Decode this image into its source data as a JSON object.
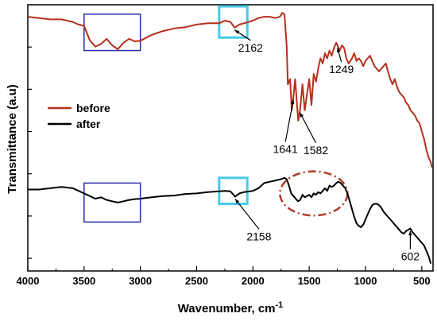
{
  "chart_data": {
    "type": "line",
    "title": "",
    "xlabel": "Wavenumber, cm",
    "xlabel_sup": "-1",
    "ylabel": "Transmittance (a.u)",
    "xlim": [
      4000,
      400
    ],
    "x_reversed": true,
    "ylim": [
      0,
      1
    ],
    "y_tick_labels_shown": false,
    "x_ticks": [
      4000,
      3500,
      3000,
      2500,
      2000,
      1500,
      1000,
      500
    ],
    "grid": false,
    "legend_position": "left",
    "series": [
      {
        "name": "before",
        "color": "#b5301c",
        "points": [
          [
            4000,
            0.96
          ],
          [
            3900,
            0.955
          ],
          [
            3800,
            0.95
          ],
          [
            3700,
            0.95
          ],
          [
            3600,
            0.94
          ],
          [
            3550,
            0.93
          ],
          [
            3500,
            0.925
          ],
          [
            3450,
            0.87
          ],
          [
            3400,
            0.845
          ],
          [
            3350,
            0.855
          ],
          [
            3300,
            0.875
          ],
          [
            3250,
            0.85
          ],
          [
            3200,
            0.835
          ],
          [
            3150,
            0.86
          ],
          [
            3100,
            0.875
          ],
          [
            3050,
            0.865
          ],
          [
            3000,
            0.868
          ],
          [
            2900,
            0.89
          ],
          [
            2800,
            0.905
          ],
          [
            2700,
            0.915
          ],
          [
            2600,
            0.92
          ],
          [
            2500,
            0.93
          ],
          [
            2400,
            0.935
          ],
          [
            2300,
            0.935
          ],
          [
            2250,
            0.945
          ],
          [
            2200,
            0.94
          ],
          [
            2162,
            0.918
          ],
          [
            2120,
            0.93
          ],
          [
            2080,
            0.935
          ],
          [
            2000,
            0.945
          ],
          [
            1950,
            0.955
          ],
          [
            1900,
            0.96
          ],
          [
            1850,
            0.96
          ],
          [
            1800,
            0.955
          ],
          [
            1760,
            0.96
          ],
          [
            1740,
            0.975
          ],
          [
            1720,
            0.97
          ],
          [
            1700,
            0.85
          ],
          [
            1690,
            0.7
          ],
          [
            1670,
            0.72
          ],
          [
            1655,
            0.6
          ],
          [
            1641,
            0.65
          ],
          [
            1625,
            0.72
          ],
          [
            1610,
            0.63
          ],
          [
            1597,
            0.56
          ],
          [
            1582,
            0.6
          ],
          [
            1560,
            0.7
          ],
          [
            1540,
            0.6
          ],
          [
            1520,
            0.66
          ],
          [
            1500,
            0.72
          ],
          [
            1480,
            0.62
          ],
          [
            1460,
            0.74
          ],
          [
            1440,
            0.71
          ],
          [
            1420,
            0.76
          ],
          [
            1400,
            0.8
          ],
          [
            1380,
            0.78
          ],
          [
            1360,
            0.82
          ],
          [
            1340,
            0.8
          ],
          [
            1320,
            0.83
          ],
          [
            1300,
            0.81
          ],
          [
            1280,
            0.84
          ],
          [
            1260,
            0.86
          ],
          [
            1249,
            0.85
          ],
          [
            1230,
            0.83
          ],
          [
            1210,
            0.85
          ],
          [
            1190,
            0.84
          ],
          [
            1170,
            0.8
          ],
          [
            1150,
            0.78
          ],
          [
            1120,
            0.8
          ],
          [
            1100,
            0.82
          ],
          [
            1080,
            0.79
          ],
          [
            1060,
            0.8
          ],
          [
            1040,
            0.79
          ],
          [
            1020,
            0.77
          ],
          [
            1000,
            0.79
          ],
          [
            980,
            0.8
          ],
          [
            960,
            0.81
          ],
          [
            940,
            0.79
          ],
          [
            920,
            0.77
          ],
          [
            900,
            0.76
          ],
          [
            880,
            0.75
          ],
          [
            860,
            0.76
          ],
          [
            840,
            0.77
          ],
          [
            820,
            0.78
          ],
          [
            800,
            0.75
          ],
          [
            780,
            0.72
          ],
          [
            760,
            0.7
          ],
          [
            740,
            0.72
          ],
          [
            720,
            0.69
          ],
          [
            700,
            0.67
          ],
          [
            680,
            0.66
          ],
          [
            660,
            0.65
          ],
          [
            640,
            0.63
          ],
          [
            620,
            0.62
          ],
          [
            600,
            0.6
          ],
          [
            580,
            0.59
          ],
          [
            560,
            0.58
          ],
          [
            540,
            0.56
          ],
          [
            520,
            0.55
          ],
          [
            500,
            0.52
          ],
          [
            480,
            0.49
          ],
          [
            460,
            0.45
          ],
          [
            440,
            0.42
          ],
          [
            420,
            0.4
          ],
          [
            410,
            0.38
          ]
        ]
      },
      {
        "name": "after",
        "color": "#000000",
        "points": [
          [
            4000,
            0.295
          ],
          [
            3900,
            0.295
          ],
          [
            3800,
            0.3
          ],
          [
            3700,
            0.305
          ],
          [
            3600,
            0.3
          ],
          [
            3550,
            0.29
          ],
          [
            3500,
            0.28
          ],
          [
            3450,
            0.27
          ],
          [
            3400,
            0.26
          ],
          [
            3350,
            0.265
          ],
          [
            3300,
            0.255
          ],
          [
            3250,
            0.25
          ],
          [
            3200,
            0.245
          ],
          [
            3150,
            0.25
          ],
          [
            3100,
            0.255
          ],
          [
            3050,
            0.258
          ],
          [
            3000,
            0.26
          ],
          [
            2900,
            0.265
          ],
          [
            2800,
            0.27
          ],
          [
            2700,
            0.272
          ],
          [
            2600,
            0.278
          ],
          [
            2500,
            0.28
          ],
          [
            2400,
            0.285
          ],
          [
            2300,
            0.288
          ],
          [
            2250,
            0.29
          ],
          [
            2200,
            0.288
          ],
          [
            2158,
            0.268
          ],
          [
            2120,
            0.28
          ],
          [
            2080,
            0.285
          ],
          [
            2000,
            0.29
          ],
          [
            1950,
            0.3
          ],
          [
            1900,
            0.32
          ],
          [
            1850,
            0.325
          ],
          [
            1800,
            0.33
          ],
          [
            1750,
            0.335
          ],
          [
            1720,
            0.34
          ],
          [
            1700,
            0.335
          ],
          [
            1680,
            0.31
          ],
          [
            1660,
            0.28
          ],
          [
            1640,
            0.27
          ],
          [
            1620,
            0.26
          ],
          [
            1600,
            0.25
          ],
          [
            1580,
            0.255
          ],
          [
            1560,
            0.275
          ],
          [
            1540,
            0.265
          ],
          [
            1520,
            0.27
          ],
          [
            1500,
            0.275
          ],
          [
            1480,
            0.265
          ],
          [
            1460,
            0.28
          ],
          [
            1440,
            0.275
          ],
          [
            1420,
            0.285
          ],
          [
            1400,
            0.28
          ],
          [
            1380,
            0.29
          ],
          [
            1360,
            0.3
          ],
          [
            1340,
            0.29
          ],
          [
            1320,
            0.31
          ],
          [
            1300,
            0.305
          ],
          [
            1280,
            0.31
          ],
          [
            1260,
            0.32
          ],
          [
            1240,
            0.325
          ],
          [
            1220,
            0.32
          ],
          [
            1200,
            0.31
          ],
          [
            1180,
            0.3
          ],
          [
            1160,
            0.28
          ],
          [
            1140,
            0.25
          ],
          [
            1120,
            0.22
          ],
          [
            1100,
            0.19
          ],
          [
            1080,
            0.165
          ],
          [
            1060,
            0.155
          ],
          [
            1040,
            0.15
          ],
          [
            1020,
            0.16
          ],
          [
            1000,
            0.18
          ],
          [
            980,
            0.2
          ],
          [
            960,
            0.22
          ],
          [
            940,
            0.235
          ],
          [
            920,
            0.24
          ],
          [
            900,
            0.24
          ],
          [
            880,
            0.235
          ],
          [
            860,
            0.225
          ],
          [
            840,
            0.21
          ],
          [
            820,
            0.2
          ],
          [
            800,
            0.19
          ],
          [
            780,
            0.18
          ],
          [
            760,
            0.17
          ],
          [
            740,
            0.16
          ],
          [
            720,
            0.15
          ],
          [
            700,
            0.14
          ],
          [
            680,
            0.13
          ],
          [
            660,
            0.125
          ],
          [
            640,
            0.135
          ],
          [
            620,
            0.14
          ],
          [
            602,
            0.145
          ],
          [
            580,
            0.13
          ],
          [
            560,
            0.12
          ],
          [
            540,
            0.11
          ],
          [
            520,
            0.1
          ],
          [
            500,
            0.09
          ],
          [
            480,
            0.08
          ],
          [
            460,
            0.06
          ],
          [
            440,
            0.04
          ],
          [
            420,
            0.01
          ]
        ]
      }
    ],
    "annotations": [
      {
        "label": "2162",
        "x": 2162,
        "y": 0.918
      },
      {
        "label": "1641",
        "x": 1641,
        "y": 0.65
      },
      {
        "label": "1582",
        "x": 1582,
        "y": 0.6
      },
      {
        "label": "1249",
        "x": 1249,
        "y": 0.85
      },
      {
        "label": "2158",
        "x": 2158,
        "y": 0.268
      },
      {
        "label": "602",
        "x": 602,
        "y": 0.145
      }
    ],
    "highlight_boxes": [
      {
        "style": "dark-blue",
        "x_range": [
          3500,
          3000
        ],
        "y_range": [
          0.83,
          0.97
        ]
      },
      {
        "style": "light-blue",
        "x_range": [
          2300,
          2050
        ],
        "y_range": [
          0.88,
          1.0
        ]
      },
      {
        "style": "dark-blue",
        "x_range": [
          3500,
          3000
        ],
        "y_range": [
          0.17,
          0.32
        ]
      },
      {
        "style": "light-blue",
        "x_range": [
          2300,
          2050
        ],
        "y_range": [
          0.24,
          0.34
        ]
      }
    ],
    "highlight_ellipse": {
      "style": "dash-dot-red",
      "x_center": 1460,
      "y_center": 0.28,
      "x_radius": 300,
      "y_radius": 0.085
    }
  }
}
